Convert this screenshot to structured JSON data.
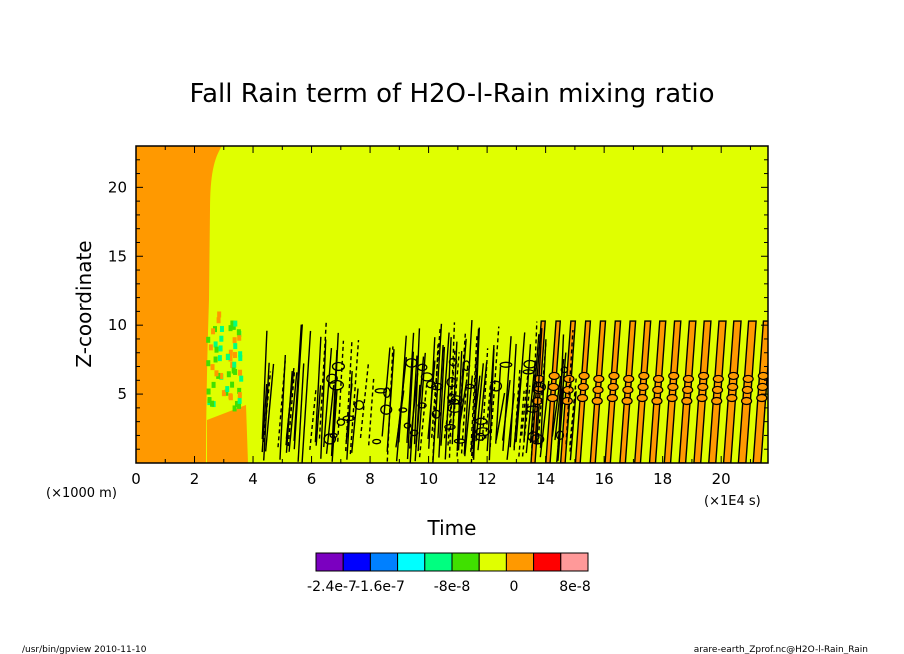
{
  "chart_data": {
    "type": "heatmap",
    "title": "Fall Rain term of H2O-l-Rain mixing ratio",
    "xlabel": "Time",
    "ylabel": "Z-coordinate",
    "x_unit": "(×1E4 s)",
    "y_unit": "(×1000 m)",
    "xlim": [
      0,
      21.6
    ],
    "ylim": [
      0,
      23
    ],
    "x_ticks": [
      0,
      2,
      4,
      6,
      8,
      10,
      12,
      14,
      16,
      18,
      20
    ],
    "y_ticks": [
      5,
      10,
      15,
      20
    ],
    "colorbar": {
      "colors": [
        "#7b00c0",
        "#0000ff",
        "#0080ff",
        "#00ffff",
        "#00ff80",
        "#40e000",
        "#e0ff00",
        "#ff9900",
        "#ff0000",
        "#ff9999"
      ],
      "labels": [
        "-2.4e-7",
        "-1.6e-7",
        "-8e-8",
        "0",
        "8e-8"
      ]
    },
    "regions": [
      {
        "name": "orange-early",
        "color": "#ff9900",
        "x_end": 2.6
      },
      {
        "name": "background",
        "color": "#e0ff00"
      },
      {
        "name": "green-burst",
        "color": "#40e000",
        "x": [
          2.4,
          3.6
        ],
        "y": [
          4,
          12
        ]
      },
      {
        "name": "orange-stripes",
        "color": "#ff9900",
        "x_start": 13.5,
        "x_end": 21.6,
        "y_top": 10.3,
        "count": 16
      }
    ]
  },
  "footer": {
    "left": "/usr/bin/gpview   2010-11-10",
    "right": "arare-earth_Zprof.nc@H2O-l-Rain_Rain"
  }
}
